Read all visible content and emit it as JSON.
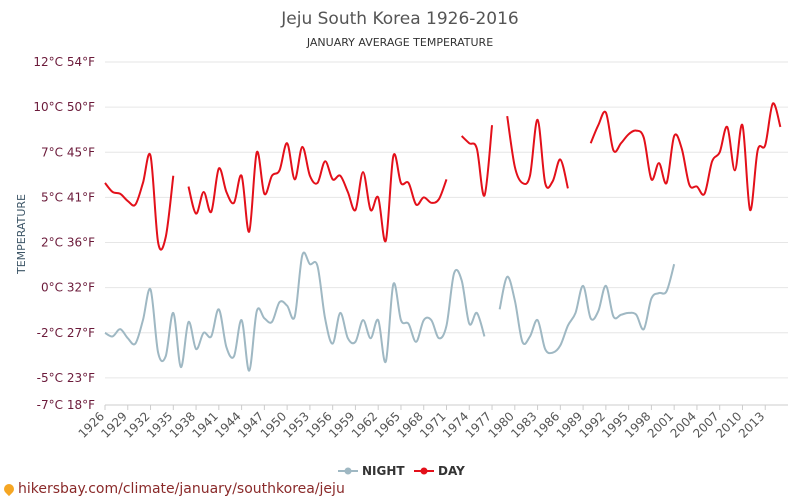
{
  "source_url": "hikersbay.com/climate/january/southkorea/jeju",
  "chart_data": {
    "type": "line",
    "title": "Jeju South Korea 1926-2016",
    "subtitle": "JANUARY AVERAGE TEMPERATURE",
    "ylabel": "TEMPERATURE",
    "ylim": [
      -7,
      12
    ],
    "y_ticks": [
      {
        "value": 12,
        "label": "12°C 54°F"
      },
      {
        "value": 9.5,
        "label": "10°C 50°F"
      },
      {
        "value": 7,
        "label": "7°C 45°F"
      },
      {
        "value": 4.5,
        "label": "5°C 41°F"
      },
      {
        "value": 2,
        "label": "2°C 36°F"
      },
      {
        "value": -0.5,
        "label": "0°C 32°F"
      },
      {
        "value": -3,
        "label": "-2°C 27°F"
      },
      {
        "value": -5.5,
        "label": "-5°C 23°F"
      },
      {
        "value": -7,
        "label": "-7°C 18°F"
      }
    ],
    "x_range": [
      1926,
      2016
    ],
    "x_ticks": [
      1926,
      1929,
      1932,
      1935,
      1938,
      1941,
      1944,
      1947,
      1950,
      1953,
      1956,
      1959,
      1962,
      1965,
      1968,
      1971,
      1974,
      1977,
      1980,
      1983,
      1986,
      1989,
      1992,
      1995,
      1998,
      2001,
      2004,
      2007,
      2010,
      2013
    ],
    "legend_position": "bottom",
    "colors": {
      "night": "#9fb8c3",
      "day": "#e3101a"
    },
    "series": [
      {
        "name": "NIGHT",
        "points": [
          [
            1926,
            -3.0
          ],
          [
            1927,
            -3.2
          ],
          [
            1928,
            -2.8
          ],
          [
            1929,
            -3.3
          ],
          [
            1930,
            -3.6
          ],
          [
            1931,
            -2.3
          ],
          [
            1932,
            -0.6
          ],
          [
            1933,
            -4.1
          ],
          [
            1934,
            -4.3
          ],
          [
            1935,
            -1.9
          ],
          [
            1936,
            -4.9
          ],
          [
            1937,
            -2.4
          ],
          [
            1938,
            -3.9
          ],
          [
            1939,
            -3.0
          ],
          [
            1940,
            -3.2
          ],
          [
            1941,
            -1.7
          ],
          [
            1942,
            -3.8
          ],
          [
            1943,
            -4.3
          ],
          [
            1944,
            -2.3
          ],
          [
            1945,
            -5.1
          ],
          [
            1946,
            -1.8
          ],
          [
            1947,
            -2.2
          ],
          [
            1948,
            -2.4
          ],
          [
            1949,
            -1.3
          ],
          [
            1950,
            -1.5
          ],
          [
            1951,
            -2.1
          ],
          [
            1952,
            1.3
          ],
          [
            1953,
            0.8
          ],
          [
            1954,
            0.7
          ],
          [
            1955,
            -2.2
          ],
          [
            1956,
            -3.6
          ],
          [
            1957,
            -1.9
          ],
          [
            1958,
            -3.3
          ],
          [
            1959,
            -3.5
          ],
          [
            1960,
            -2.3
          ],
          [
            1961,
            -3.3
          ],
          [
            1962,
            -2.3
          ],
          [
            1963,
            -4.6
          ],
          [
            1964,
            -0.3
          ],
          [
            1965,
            -2.3
          ],
          [
            1966,
            -2.5
          ],
          [
            1967,
            -3.5
          ],
          [
            1968,
            -2.3
          ],
          [
            1969,
            -2.3
          ],
          [
            1970,
            -3.3
          ],
          [
            1971,
            -2.6
          ],
          [
            1972,
            0.3
          ],
          [
            1973,
            -0.1
          ],
          [
            1974,
            -2.5
          ],
          [
            1975,
            -1.9
          ],
          [
            1976,
            -3.2
          ],
          null,
          [
            1978,
            -1.7
          ],
          [
            1979,
            0.1
          ],
          [
            1980,
            -1.2
          ],
          [
            1981,
            -3.5
          ],
          [
            1982,
            -3.2
          ],
          [
            1983,
            -2.3
          ],
          [
            1984,
            -3.9
          ],
          [
            1985,
            -4.1
          ],
          [
            1986,
            -3.7
          ],
          [
            1987,
            -2.6
          ],
          [
            1988,
            -1.9
          ],
          [
            1989,
            -0.4
          ],
          [
            1990,
            -2.2
          ],
          [
            1991,
            -1.8
          ],
          [
            1992,
            -0.4
          ],
          [
            1993,
            -2.1
          ],
          [
            1994,
            -2.0
          ],
          [
            1995,
            -1.9
          ],
          [
            1996,
            -2.0
          ],
          [
            1997,
            -2.8
          ],
          [
            1998,
            -1.1
          ],
          [
            1999,
            -0.8
          ],
          [
            2000,
            -0.7
          ],
          [
            2001,
            0.8
          ]
        ]
      },
      {
        "name": "DAY",
        "points": [
          [
            1926,
            5.3
          ],
          [
            1927,
            4.8
          ],
          [
            1928,
            4.7
          ],
          [
            1929,
            4.3
          ],
          [
            1930,
            4.1
          ],
          [
            1931,
            5.3
          ],
          [
            1932,
            6.8
          ],
          [
            1933,
            2.0
          ],
          [
            1934,
            2.3
          ],
          [
            1935,
            5.7
          ],
          null,
          [
            1937,
            5.1
          ],
          [
            1938,
            3.6
          ],
          [
            1939,
            4.8
          ],
          [
            1940,
            3.7
          ],
          [
            1941,
            6.1
          ],
          [
            1942,
            4.8
          ],
          [
            1943,
            4.2
          ],
          [
            1944,
            5.7
          ],
          [
            1945,
            2.6
          ],
          [
            1946,
            7.0
          ],
          [
            1947,
            4.7
          ],
          [
            1948,
            5.7
          ],
          [
            1949,
            6.0
          ],
          [
            1950,
            7.5
          ],
          [
            1951,
            5.5
          ],
          [
            1952,
            7.3
          ],
          [
            1953,
            5.7
          ],
          [
            1954,
            5.3
          ],
          [
            1955,
            6.5
          ],
          [
            1956,
            5.5
          ],
          [
            1957,
            5.7
          ],
          [
            1958,
            4.8
          ],
          [
            1959,
            3.8
          ],
          [
            1960,
            5.9
          ],
          [
            1961,
            3.8
          ],
          [
            1962,
            4.5
          ],
          [
            1963,
            2.1
          ],
          [
            1964,
            6.8
          ],
          [
            1965,
            5.3
          ],
          [
            1966,
            5.3
          ],
          [
            1967,
            4.1
          ],
          [
            1968,
            4.5
          ],
          [
            1969,
            4.2
          ],
          [
            1970,
            4.4
          ],
          [
            1971,
            5.5
          ],
          null,
          [
            1973,
            7.9
          ],
          [
            1974,
            7.5
          ],
          [
            1975,
            7.2
          ],
          [
            1976,
            4.6
          ],
          [
            1977,
            8.5
          ],
          null,
          [
            1979,
            9.0
          ],
          [
            1980,
            6.2
          ],
          [
            1981,
            5.3
          ],
          [
            1982,
            5.7
          ],
          [
            1983,
            8.8
          ],
          [
            1984,
            5.3
          ],
          [
            1985,
            5.4
          ],
          [
            1986,
            6.6
          ],
          [
            1987,
            5.0
          ],
          null,
          [
            1990,
            7.5
          ],
          [
            1991,
            8.5
          ],
          [
            1992,
            9.2
          ],
          [
            1993,
            7.1
          ],
          [
            1994,
            7.5
          ],
          [
            1995,
            8.0
          ],
          [
            1996,
            8.2
          ],
          [
            1997,
            7.8
          ],
          [
            1998,
            5.5
          ],
          [
            1999,
            6.4
          ],
          [
            2000,
            5.3
          ],
          [
            2001,
            7.9
          ],
          [
            2002,
            7.2
          ],
          [
            2003,
            5.2
          ],
          [
            2004,
            5.1
          ],
          [
            2005,
            4.7
          ],
          [
            2006,
            6.5
          ],
          [
            2007,
            7.0
          ],
          [
            2008,
            8.4
          ],
          [
            2009,
            6.0
          ],
          [
            2010,
            8.5
          ],
          [
            2011,
            3.8
          ],
          [
            2012,
            7.1
          ],
          [
            2013,
            7.4
          ],
          [
            2014,
            9.7
          ],
          [
            2015,
            8.4
          ]
        ]
      }
    ]
  }
}
